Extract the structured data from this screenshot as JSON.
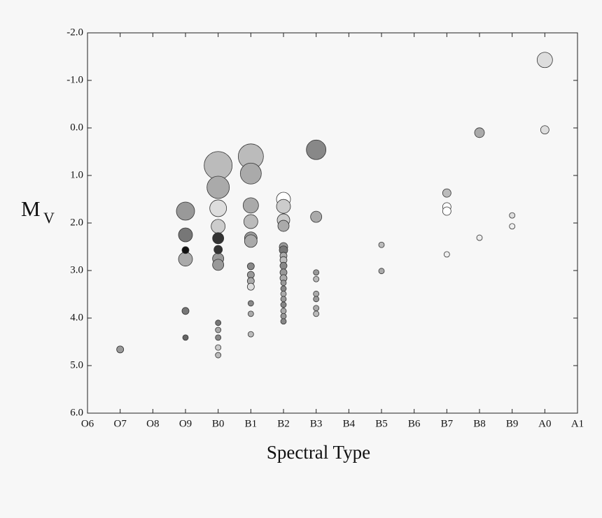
{
  "chart_data": {
    "type": "bubble",
    "xlabel": "Spectral Type",
    "ylabel": "M",
    "ylabel_subscript": "V",
    "xlim": [
      0,
      15
    ],
    "ylim": [
      6.0,
      -2.0
    ],
    "xticks": [
      {
        "value": 0,
        "label": "O6"
      },
      {
        "value": 1,
        "label": "O7"
      },
      {
        "value": 2,
        "label": "O8"
      },
      {
        "value": 3,
        "label": "O9"
      },
      {
        "value": 4,
        "label": "B0"
      },
      {
        "value": 5,
        "label": "B1"
      },
      {
        "value": 6,
        "label": "B2"
      },
      {
        "value": 7,
        "label": "B3"
      },
      {
        "value": 8,
        "label": "B4"
      },
      {
        "value": 9,
        "label": "B5"
      },
      {
        "value": 10,
        "label": "B6"
      },
      {
        "value": 11,
        "label": "B7"
      },
      {
        "value": 12,
        "label": "B8"
      },
      {
        "value": 13,
        "label": "B9"
      },
      {
        "value": 14,
        "label": "A0"
      },
      {
        "value": 15,
        "label": "A1"
      }
    ],
    "yticks": [
      {
        "value": -2,
        "label": "-2.0"
      },
      {
        "value": -1,
        "label": "-1.0"
      },
      {
        "value": 0,
        "label": "0.0"
      },
      {
        "value": 1,
        "label": "1.0"
      },
      {
        "value": 2,
        "label": "2.0"
      },
      {
        "value": 3,
        "label": "3.0"
      },
      {
        "value": 4,
        "label": "4.0"
      },
      {
        "value": 5,
        "label": "5.0"
      },
      {
        "value": 6,
        "label": "6.0"
      }
    ],
    "series": [
      {
        "x": [
          1,
          3,
          3,
          3,
          3,
          3,
          3,
          4,
          4,
          4,
          4,
          4,
          4,
          4,
          4,
          4,
          4,
          4,
          4,
          4,
          5,
          5,
          5,
          5,
          5,
          5,
          5,
          5,
          5,
          5,
          5,
          5,
          5,
          6,
          6,
          6,
          6,
          6,
          6,
          6,
          6,
          6,
          6,
          6,
          6,
          6,
          6,
          6,
          6,
          6,
          6,
          6,
          7,
          7,
          7,
          7,
          7,
          7,
          7,
          7,
          9,
          9,
          11,
          11,
          11,
          11,
          12,
          12,
          13,
          13,
          14,
          14
        ],
        "values": [
          4.66,
          1.75,
          2.25,
          2.57,
          2.76,
          3.85,
          4.41,
          0.79,
          1.25,
          1.69,
          2.07,
          2.32,
          2.56,
          2.75,
          2.88,
          4.1,
          4.25,
          4.41,
          4.62,
          4.78,
          0.6,
          0.96,
          1.63,
          1.97,
          2.32,
          2.38,
          2.91,
          3.09,
          3.22,
          3.34,
          3.69,
          3.91,
          4.34,
          1.5,
          1.65,
          1.94,
          2.06,
          2.5,
          2.57,
          2.69,
          2.78,
          2.9,
          3.04,
          3.16,
          3.26,
          3.38,
          3.49,
          3.6,
          3.72,
          3.85,
          3.96,
          4.07,
          0.46,
          1.87,
          3.04,
          3.18,
          3.49,
          3.6,
          3.79,
          3.91,
          2.46,
          3.01,
          1.37,
          1.66,
          1.75,
          2.66,
          0.1,
          2.31,
          1.84,
          2.07,
          -1.43,
          0.04
        ],
        "sizes": [
          5,
          13,
          10,
          5,
          10,
          5,
          4,
          20,
          16,
          12,
          10,
          8,
          6,
          8,
          8,
          4,
          4,
          4,
          4,
          4,
          18,
          15,
          11,
          10,
          9,
          9,
          5,
          5,
          5,
          5,
          4,
          4,
          4,
          10,
          10,
          9,
          8,
          6,
          6,
          5,
          5,
          5,
          5,
          5,
          4,
          4,
          4,
          4,
          4,
          4,
          4,
          4,
          14,
          8,
          4,
          4,
          4,
          4,
          4,
          4,
          4,
          4,
          6,
          6,
          6,
          4,
          7,
          4,
          4,
          4,
          11,
          6
        ],
        "colors": [
          "#999",
          "#999",
          "#777",
          "#111",
          "#aaa",
          "#777",
          "#666",
          "#bbb",
          "#aaa",
          "#ddd",
          "#ccc",
          "#333",
          "#333",
          "#999",
          "#999",
          "#777",
          "#aaa",
          "#888",
          "#ccc",
          "#bbb",
          "#bbb",
          "#aaa",
          "#aaa",
          "#bbb",
          "#999",
          "#aaa",
          "#888",
          "#999",
          "#aaa",
          "#ddd",
          "#888",
          "#aaa",
          "#bbb",
          "#fff",
          "#ccc",
          "#ccc",
          "#aaa",
          "#999",
          "#777",
          "#aaa",
          "#bbb",
          "#888",
          "#999",
          "#aaa",
          "#999",
          "#888",
          "#aaa",
          "#999",
          "#888",
          "#aaa",
          "#999",
          "#888",
          "#888",
          "#aaa",
          "#999",
          "#bbb",
          "#aaa",
          "#999",
          "#aaa",
          "#bbb",
          "#bbb",
          "#aaa",
          "#bbb",
          "#fff",
          "#fff",
          "#eee",
          "#aaa",
          "#eee",
          "#ddd",
          "#eee",
          "#ddd",
          "#ddd"
        ]
      }
    ]
  }
}
